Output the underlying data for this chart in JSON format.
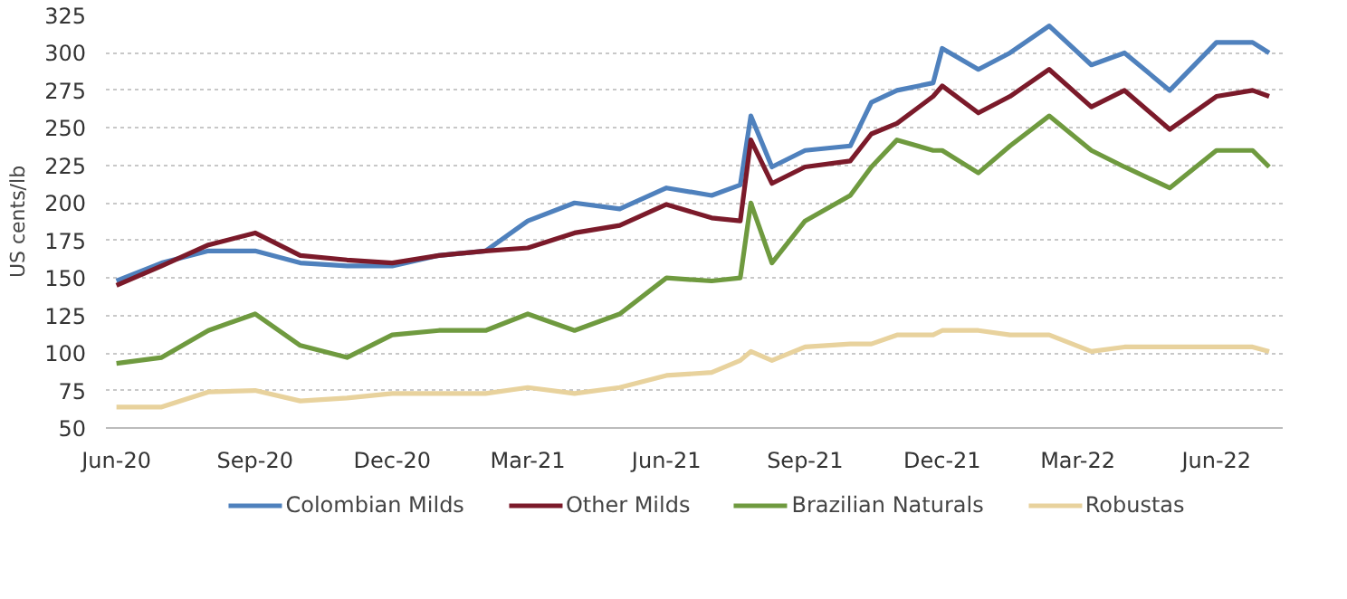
{
  "chart_data": {
    "type": "line",
    "ylabel": "US cents/lb",
    "x": [
      "2020-06-01",
      "2020-07-01",
      "2020-08-01",
      "2020-09-01",
      "2020-10-01",
      "2020-11-01",
      "2020-12-01",
      "2021-01-01",
      "2021-02-01",
      "2021-03-01",
      "2021-04-01",
      "2021-05-01",
      "2021-06-01",
      "2021-07-01",
      "2021-07-20",
      "2021-07-27",
      "2021-08-10",
      "2021-09-01",
      "2021-10-01",
      "2021-10-15",
      "2021-11-01",
      "2021-11-25",
      "2021-12-01",
      "2021-12-25",
      "2022-01-15",
      "2022-02-10",
      "2022-03-10",
      "2022-04-01",
      "2022-05-01",
      "2022-06-01",
      "2022-06-25",
      "2022-07-06"
    ],
    "series": [
      {
        "name": "Colombian Milds",
        "color": "#4f81bd",
        "values": [
          148,
          160,
          168,
          168,
          160,
          158,
          158,
          165,
          168,
          188,
          200,
          196,
          210,
          205,
          212,
          258,
          224,
          235,
          238,
          267,
          275,
          280,
          303,
          289,
          300,
          318,
          292,
          300,
          275,
          307,
          307,
          300
        ]
      },
      {
        "name": "Other Milds",
        "color": "#7b1a2a",
        "values": [
          145,
          158,
          172,
          180,
          165,
          162,
          160,
          165,
          168,
          170,
          180,
          185,
          199,
          190,
          188,
          242,
          213,
          224,
          228,
          246,
          253,
          271,
          278,
          260,
          271,
          289,
          264,
          275,
          249,
          271,
          275,
          271
        ]
      },
      {
        "name": "Brazilian Naturals",
        "color": "#6f9a3f",
        "values": [
          93,
          97,
          115,
          126,
          105,
          97,
          112,
          115,
          115,
          126,
          115,
          126,
          150,
          148,
          150,
          200,
          160,
          188,
          205,
          224,
          242,
          235,
          235,
          220,
          238,
          258,
          235,
          224,
          210,
          235,
          235,
          224
        ]
      },
      {
        "name": "Robustas",
        "color": "#e8d29d",
        "values": [
          64,
          64,
          74,
          75,
          68,
          70,
          73,
          73,
          73,
          77,
          73,
          77,
          85,
          87,
          95,
          101,
          95,
          104,
          106,
          106,
          112,
          112,
          115,
          115,
          112,
          112,
          101,
          104,
          104,
          104,
          104,
          101
        ]
      }
    ],
    "xlim": [
      "2020-05-25",
      "2022-07-15"
    ],
    "xticks": [
      {
        "value": "2020-06-01",
        "label": "Jun-20"
      },
      {
        "value": "2020-09-01",
        "label": "Sep-20"
      },
      {
        "value": "2020-12-01",
        "label": "Dec-20"
      },
      {
        "value": "2021-03-01",
        "label": "Mar-21"
      },
      {
        "value": "2021-06-01",
        "label": "Jun-21"
      },
      {
        "value": "2021-09-01",
        "label": "Sep-21"
      },
      {
        "value": "2021-12-01",
        "label": "Dec-21"
      },
      {
        "value": "2022-03-01",
        "label": "Mar-22"
      },
      {
        "value": "2022-06-01",
        "label": "Jun-22"
      }
    ],
    "ylim": [
      50,
      325
    ],
    "yticks": [
      50,
      75,
      100,
      125,
      150,
      175,
      200,
      225,
      250,
      275,
      300,
      325
    ],
    "grid": "y",
    "legend": "bottom",
    "marker": "none",
    "line_style": "solid"
  }
}
